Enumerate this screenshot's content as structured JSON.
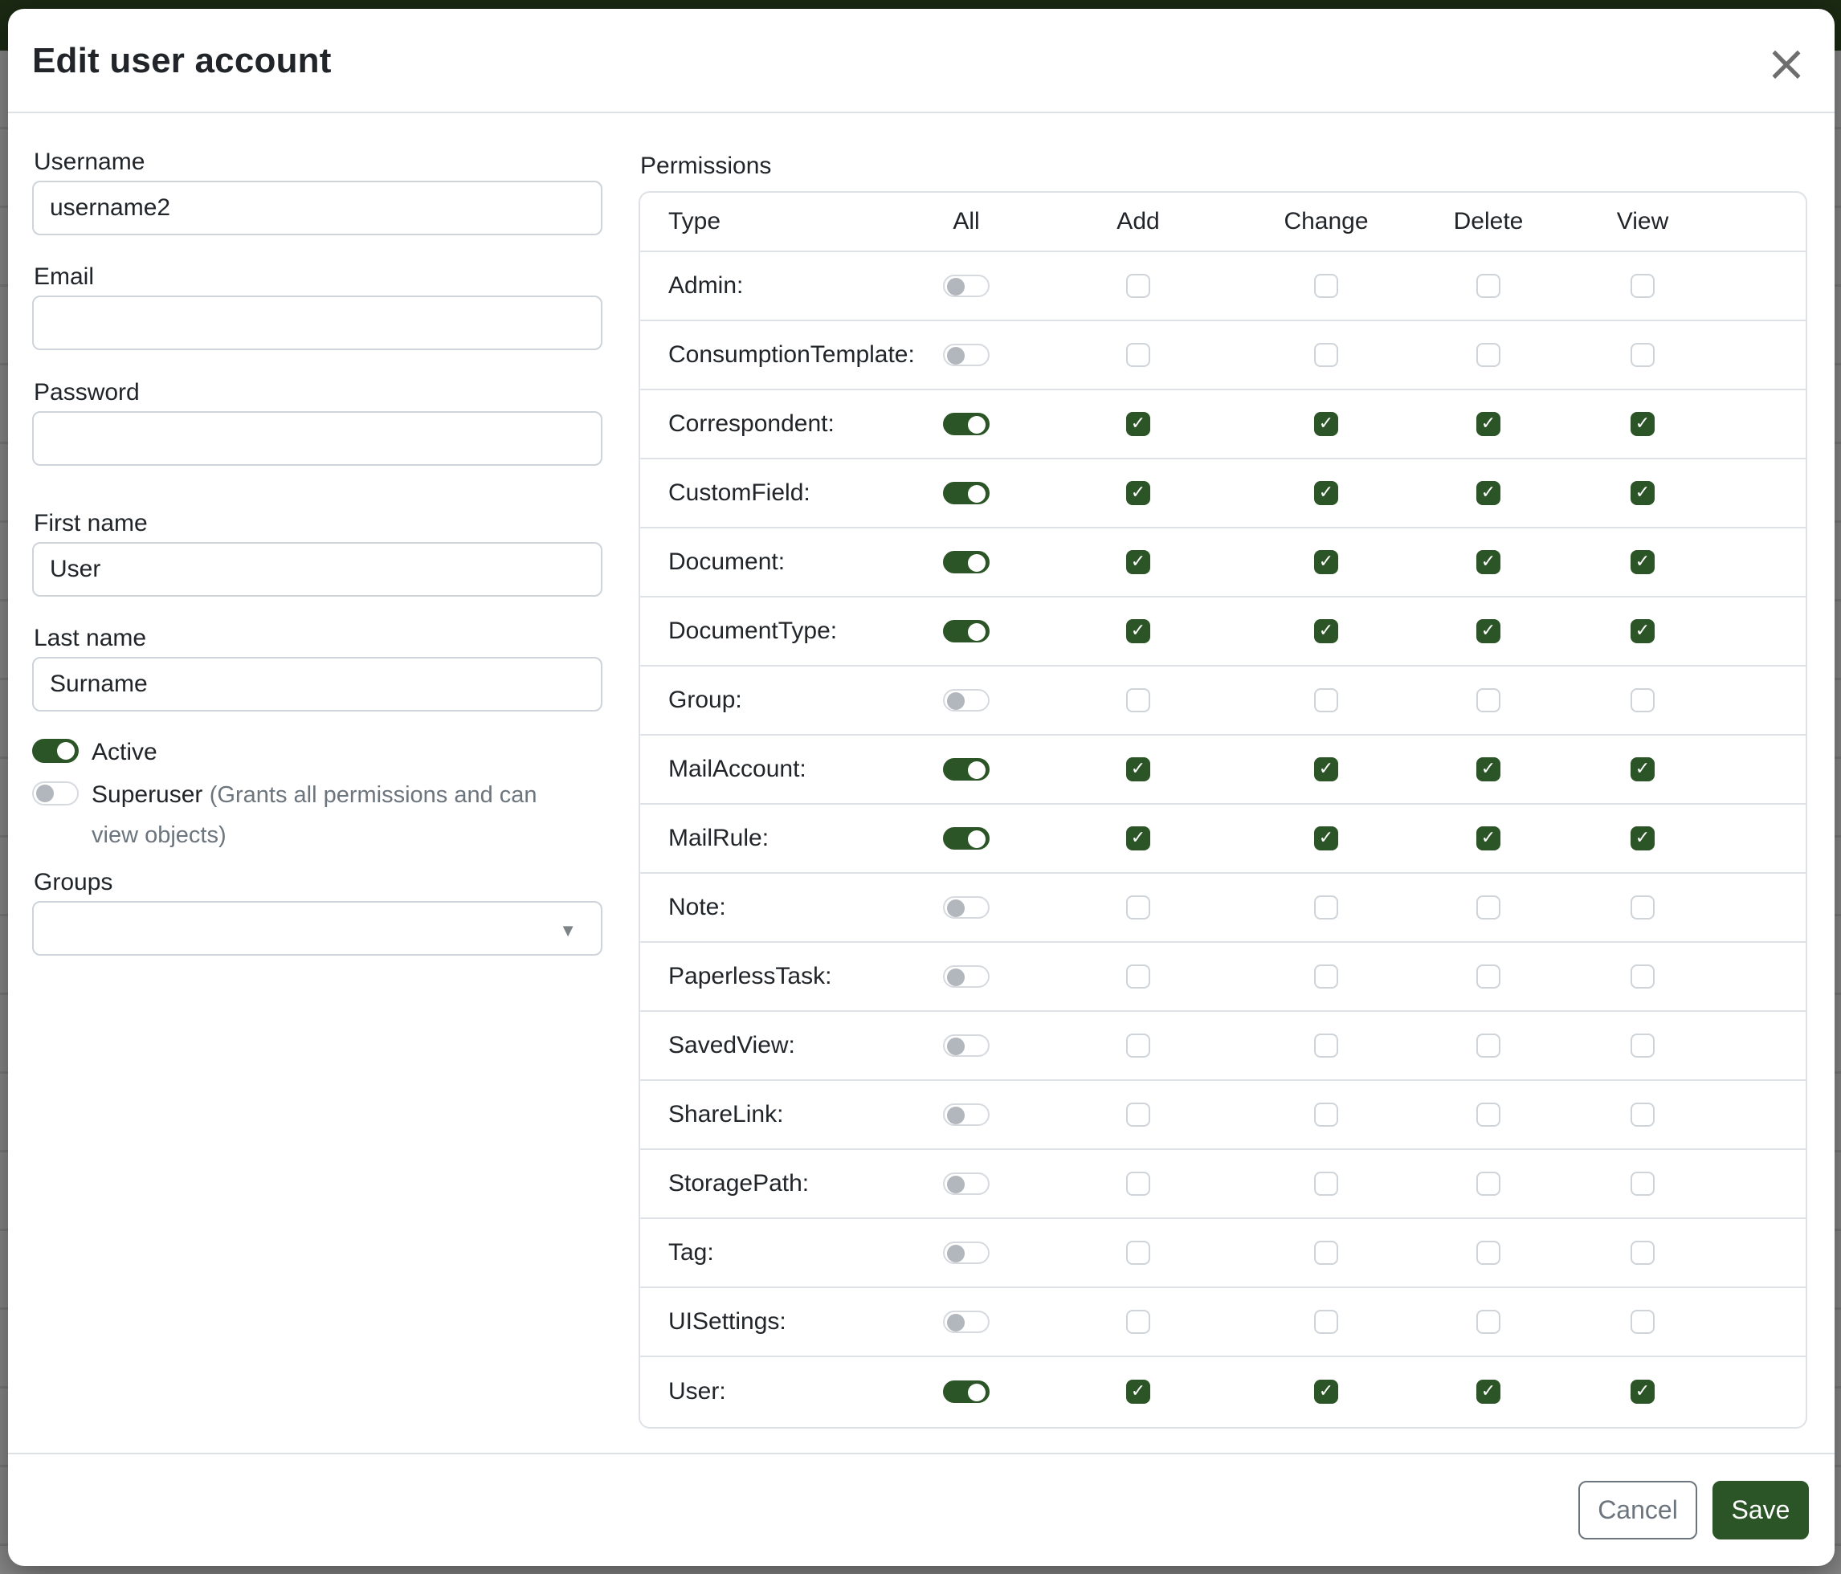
{
  "colors": {
    "primary_green": "#2c5527",
    "topbar_green": "#1b2a13",
    "backdrop_gray": "#878787",
    "border_gray": "#dee2e6",
    "muted_text": "#6c757d"
  },
  "icons": {
    "close": "×",
    "dropdown_caret": "▼",
    "check": "✓"
  },
  "modal": {
    "title": "Edit user account",
    "fields": {
      "username": {
        "label": "Username",
        "value": "username2"
      },
      "email": {
        "label": "Email",
        "value": ""
      },
      "password": {
        "label": "Password",
        "value": ""
      },
      "first_name": {
        "label": "First name",
        "value": "User"
      },
      "last_name": {
        "label": "Last name",
        "value": "Surname"
      }
    },
    "toggles": {
      "active": {
        "label": "Active",
        "on": true
      },
      "superuser": {
        "label": "Superuser",
        "hint": "(Grants all permissions and can view objects)",
        "on": false
      }
    },
    "groups": {
      "label": "Groups",
      "value": ""
    },
    "permissions": {
      "label": "Permissions",
      "columns": [
        "Type",
        "All",
        "Add",
        "Change",
        "Delete",
        "View"
      ],
      "rows": [
        {
          "type": "Admin:",
          "all": false,
          "add": false,
          "change": false,
          "delete": false,
          "view": false
        },
        {
          "type": "ConsumptionTemplate:",
          "all": false,
          "add": false,
          "change": false,
          "delete": false,
          "view": false
        },
        {
          "type": "Correspondent:",
          "all": true,
          "add": true,
          "change": true,
          "delete": true,
          "view": true
        },
        {
          "type": "CustomField:",
          "all": true,
          "add": true,
          "change": true,
          "delete": true,
          "view": true
        },
        {
          "type": "Document:",
          "all": true,
          "add": true,
          "change": true,
          "delete": true,
          "view": true
        },
        {
          "type": "DocumentType:",
          "all": true,
          "add": true,
          "change": true,
          "delete": true,
          "view": true
        },
        {
          "type": "Group:",
          "all": false,
          "add": false,
          "change": false,
          "delete": false,
          "view": false
        },
        {
          "type": "MailAccount:",
          "all": true,
          "add": true,
          "change": true,
          "delete": true,
          "view": true
        },
        {
          "type": "MailRule:",
          "all": true,
          "add": true,
          "change": true,
          "delete": true,
          "view": true
        },
        {
          "type": "Note:",
          "all": false,
          "add": false,
          "change": false,
          "delete": false,
          "view": false
        },
        {
          "type": "PaperlessTask:",
          "all": false,
          "add": false,
          "change": false,
          "delete": false,
          "view": false
        },
        {
          "type": "SavedView:",
          "all": false,
          "add": false,
          "change": false,
          "delete": false,
          "view": false
        },
        {
          "type": "ShareLink:",
          "all": false,
          "add": false,
          "change": false,
          "delete": false,
          "view": false
        },
        {
          "type": "StoragePath:",
          "all": false,
          "add": false,
          "change": false,
          "delete": false,
          "view": false
        },
        {
          "type": "Tag:",
          "all": false,
          "add": false,
          "change": false,
          "delete": false,
          "view": false
        },
        {
          "type": "UISettings:",
          "all": false,
          "add": false,
          "change": false,
          "delete": false,
          "view": false
        },
        {
          "type": "User:",
          "all": true,
          "add": true,
          "change": true,
          "delete": true,
          "view": true
        }
      ]
    },
    "footer": {
      "cancel": "Cancel",
      "save": "Save"
    }
  }
}
